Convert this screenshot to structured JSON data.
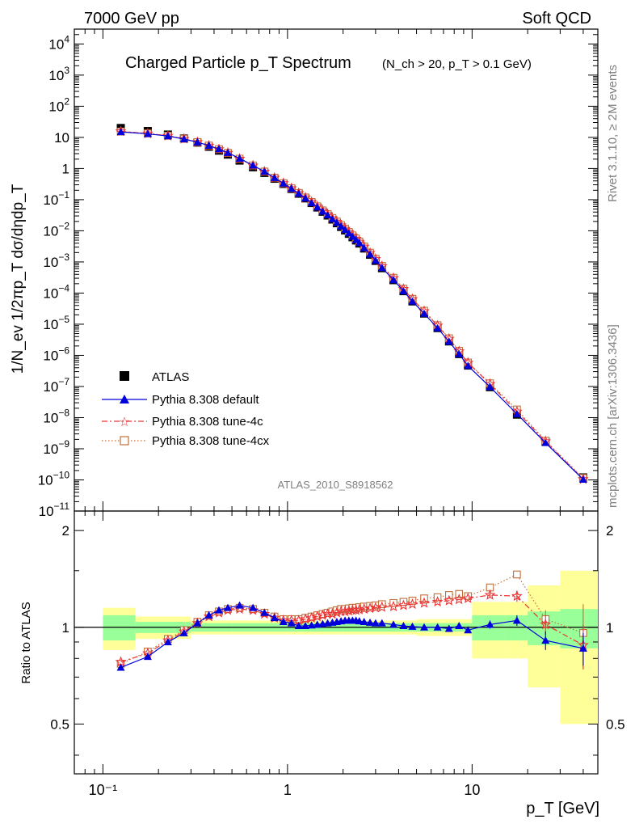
{
  "header": {
    "left": "7000 GeV pp",
    "right": "Soft QCD"
  },
  "side": {
    "rivet": "Rivet 3.1.10, ≥ 2M events",
    "mcplots": "mcplots.cern.ch [arXiv:1306.3436]"
  },
  "chart_data": {
    "type": "scatter",
    "title": "Charged Particle p_T Spectrum",
    "subtitle": "(N_ch > 20, p_T > 0.1 GeV)",
    "analysis_id": "ATLAS_2010_S8918562",
    "xlabel": "p_T [GeV]",
    "ylabel_main": "1/N_ev 1/2πp_T dσ/dηdp_T",
    "ylabel_ratio": "Ratio to ATLAS",
    "x_scale": "log",
    "xlim": [
      0.07,
      48
    ],
    "main_y_scale": "log",
    "main_ylim": [
      1e-11,
      30000
    ],
    "ratio_ylim": [
      0.35,
      2.3
    ],
    "x_tick_labels": [
      "10⁻¹",
      "1",
      "10"
    ],
    "ratio_tick_labels": [
      "0.5",
      "1",
      "2"
    ],
    "legend": [
      {
        "name": "ATLAS",
        "color": "#000000",
        "marker": "square-filled",
        "line": "none"
      },
      {
        "name": "Pythia 8.308 default",
        "color": "#0000dd",
        "marker": "triangle-filled",
        "line": "solid"
      },
      {
        "name": "Pythia 8.308 tune-4c",
        "color": "#ee3333",
        "marker": "star-open",
        "line": "dashdot"
      },
      {
        "name": "Pythia 8.308 tune-4cx",
        "color": "#c0703a",
        "marker": "square-open",
        "line": "dotted"
      }
    ],
    "x": [
      0.125,
      0.175,
      0.225,
      0.275,
      0.325,
      0.375,
      0.425,
      0.475,
      0.55,
      0.65,
      0.75,
      0.85,
      0.95,
      1.05,
      1.15,
      1.25,
      1.35,
      1.45,
      1.55,
      1.65,
      1.75,
      1.85,
      1.95,
      2.05,
      2.15,
      2.25,
      2.35,
      2.45,
      2.6,
      2.8,
      3.0,
      3.25,
      3.75,
      4.25,
      4.75,
      5.5,
      6.5,
      7.5,
      8.5,
      9.5,
      12.5,
      17.5,
      25,
      40
    ],
    "atlas": [
      20,
      16,
      12.3,
      9.2,
      6.8,
      5.0,
      3.75,
      2.8,
      1.8,
      1.1,
      0.72,
      0.47,
      0.32,
      0.22,
      0.155,
      0.11,
      0.078,
      0.056,
      0.041,
      0.031,
      0.023,
      0.0175,
      0.0133,
      0.0103,
      0.008,
      0.0062,
      0.0049,
      0.0039,
      0.0027,
      0.0017,
      0.00108,
      0.00063,
      0.00026,
      0.000115,
      5.4e-05,
      2.2e-05,
      7.5e-06,
      2.8e-06,
      1.1e-06,
      4.7e-07,
      9.5e-08,
      1.25e-08,
      1.7e-09,
      1.2e-10
    ],
    "ratio": {
      "default": [
        0.75,
        0.81,
        0.9,
        0.96,
        1.03,
        1.09,
        1.13,
        1.15,
        1.17,
        1.15,
        1.11,
        1.07,
        1.04,
        1.03,
        1.01,
        1.01,
        1.015,
        1.02,
        1.025,
        1.03,
        1.035,
        1.04,
        1.045,
        1.05,
        1.05,
        1.05,
        1.05,
        1.045,
        1.04,
        1.035,
        1.03,
        1.03,
        1.02,
        1.01,
        1.005,
        1.0,
        1.0,
        0.99,
        1.01,
        0.98,
        1.02,
        1.05,
        0.91,
        0.86
      ],
      "tune4c": [
        0.78,
        0.83,
        0.91,
        0.97,
        1.03,
        1.08,
        1.11,
        1.13,
        1.14,
        1.13,
        1.1,
        1.07,
        1.05,
        1.05,
        1.05,
        1.06,
        1.07,
        1.08,
        1.09,
        1.1,
        1.1,
        1.11,
        1.12,
        1.12,
        1.125,
        1.13,
        1.13,
        1.135,
        1.14,
        1.145,
        1.15,
        1.155,
        1.16,
        1.17,
        1.18,
        1.19,
        1.2,
        1.21,
        1.22,
        1.23,
        1.26,
        1.25,
        1.02,
        0.88
      ],
      "tune4cx": [
        0.77,
        0.84,
        0.92,
        0.98,
        1.04,
        1.09,
        1.12,
        1.14,
        1.15,
        1.14,
        1.11,
        1.08,
        1.06,
        1.06,
        1.06,
        1.07,
        1.08,
        1.09,
        1.1,
        1.11,
        1.12,
        1.13,
        1.14,
        1.14,
        1.145,
        1.15,
        1.15,
        1.155,
        1.16,
        1.165,
        1.17,
        1.18,
        1.19,
        1.2,
        1.21,
        1.23,
        1.24,
        1.26,
        1.27,
        1.25,
        1.33,
        1.46,
        1.06,
        0.96
      ]
    },
    "ratio_errors_last_bins": {
      "default": [
        0.03,
        0.04,
        0.06,
        0.1
      ],
      "tune4c": [
        0.02,
        0.05,
        0.07,
        0.14
      ],
      "tune4cx": [
        0.02,
        0.04,
        0.07,
        0.22
      ]
    },
    "uncertainty_bands": {
      "bin_edges": [
        0.1,
        0.15,
        0.3,
        0.5,
        1.0,
        2.0,
        5.0,
        10.0,
        15.0,
        20.0,
        30.0,
        50.0
      ],
      "green_half_width": [
        0.09,
        0.04,
        0.03,
        0.03,
        0.03,
        0.03,
        0.03,
        0.09,
        0.09,
        0.12,
        0.14,
        0.16
      ],
      "yellow_half_width": [
        0.15,
        0.08,
        0.05,
        0.05,
        0.05,
        0.05,
        0.06,
        0.2,
        0.2,
        0.35,
        0.5,
        0.6
      ]
    }
  }
}
